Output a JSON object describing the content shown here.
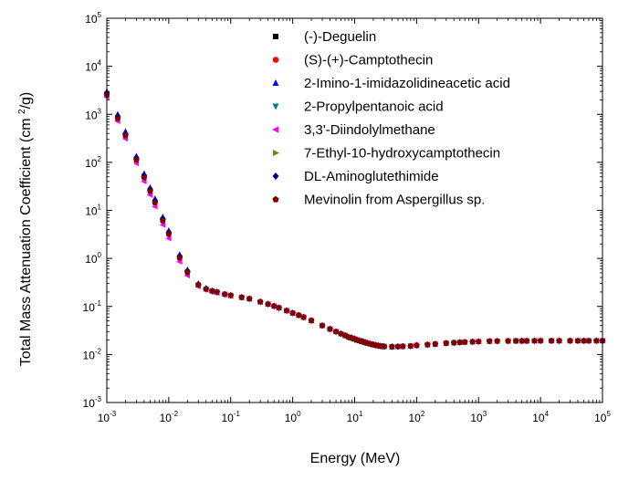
{
  "chart_data": {
    "type": "scatter",
    "x_scale": "log",
    "y_scale": "log",
    "xlabel": "Energy (MeV)",
    "ylabel": {
      "prefix": "Total Mass Attenuation Coefficient (cm ",
      "sup": "2",
      "suffix": "/g)"
    },
    "xlim": [
      0.001,
      100000
    ],
    "ylim": [
      0.001,
      100000
    ],
    "x_ticks": [
      {
        "base": "10",
        "exp": "-3"
      },
      {
        "base": "10",
        "exp": "-2"
      },
      {
        "base": "10",
        "exp": "-1"
      },
      {
        "base": "10",
        "exp": "0"
      },
      {
        "base": "10",
        "exp": "1"
      },
      {
        "base": "10",
        "exp": "2"
      },
      {
        "base": "10",
        "exp": "3"
      },
      {
        "base": "10",
        "exp": "4"
      },
      {
        "base": "10",
        "exp": "5"
      }
    ],
    "y_ticks": [
      {
        "base": "10",
        "exp": "-3"
      },
      {
        "base": "10",
        "exp": "-2"
      },
      {
        "base": "10",
        "exp": "-1"
      },
      {
        "base": "10",
        "exp": "0"
      },
      {
        "base": "10",
        "exp": "1"
      },
      {
        "base": "10",
        "exp": "2"
      },
      {
        "base": "10",
        "exp": "3"
      },
      {
        "base": "10",
        "exp": "4"
      },
      {
        "base": "10",
        "exp": "5"
      }
    ],
    "legend_position": "top-right",
    "x": [
      0.001,
      0.0015,
      0.002,
      0.003,
      0.004,
      0.005,
      0.006,
      0.008,
      0.01,
      0.015,
      0.02,
      0.03,
      0.04,
      0.05,
      0.06,
      0.08,
      0.1,
      0.15,
      0.2,
      0.3,
      0.4,
      0.5,
      0.6,
      0.8,
      1,
      1.25,
      1.5,
      2,
      3,
      4,
      5,
      6,
      7,
      8,
      9,
      10,
      11,
      12,
      13,
      14,
      15,
      16,
      18,
      20,
      22,
      24,
      26,
      28,
      30,
      40,
      50,
      60,
      80,
      100,
      150,
      200,
      300,
      400,
      500,
      600,
      800,
      1000,
      1500,
      2000,
      3000,
      4000,
      5000,
      6000,
      8000,
      10000,
      15000,
      20000,
      30000,
      40000,
      50000,
      60000,
      80000,
      100000
    ],
    "series": [
      {
        "name": "(-)-Deguelin",
        "marker": "square",
        "color": "#000000",
        "values": [
          2600,
          850,
          370,
          115,
          50,
          26,
          15,
          6.3,
          3.3,
          1.05,
          0.52,
          0.28,
          0.23,
          0.21,
          0.2,
          0.18,
          0.17,
          0.155,
          0.145,
          0.125,
          0.112,
          0.102,
          0.094,
          0.082,
          0.073,
          0.066,
          0.06,
          0.051,
          0.04,
          0.034,
          0.03,
          0.027,
          0.025,
          0.023,
          0.022,
          0.021,
          0.02,
          0.0194,
          0.0188,
          0.0182,
          0.0177,
          0.0173,
          0.0166,
          0.016,
          0.0156,
          0.0153,
          0.015,
          0.0148,
          0.0147,
          0.0145,
          0.0146,
          0.0148,
          0.015,
          0.0155,
          0.016,
          0.0165,
          0.0172,
          0.0176,
          0.0179,
          0.0181,
          0.0184,
          0.0186,
          0.0189,
          0.019,
          0.0191,
          0.0192,
          0.0192,
          0.0192,
          0.0193,
          0.0193,
          0.0193,
          0.0193,
          0.0193,
          0.0193,
          0.0193,
          0.0193,
          0.0193,
          0.0193
        ]
      },
      {
        "name": "(S)-(+)-Camptothecin",
        "marker": "circle",
        "color": "#ff0000",
        "values": [
          2700,
          880,
          385,
          120,
          52,
          27,
          15.5,
          6.5,
          3.4,
          1.08,
          0.53,
          0.28,
          0.23,
          0.21,
          0.2,
          0.18,
          0.17,
          0.155,
          0.145,
          0.125,
          0.112,
          0.102,
          0.094,
          0.082,
          0.073,
          0.066,
          0.06,
          0.051,
          0.04,
          0.034,
          0.03,
          0.027,
          0.025,
          0.023,
          0.022,
          0.021,
          0.02,
          0.0194,
          0.0188,
          0.0182,
          0.0177,
          0.0173,
          0.0166,
          0.016,
          0.0156,
          0.0153,
          0.015,
          0.0148,
          0.0147,
          0.0145,
          0.0146,
          0.0148,
          0.015,
          0.0155,
          0.016,
          0.0165,
          0.0172,
          0.0176,
          0.0179,
          0.0181,
          0.0184,
          0.0186,
          0.0189,
          0.019,
          0.0191,
          0.0192,
          0.0192,
          0.0192,
          0.0193,
          0.0193,
          0.0193,
          0.0193,
          0.0193,
          0.0193,
          0.0193,
          0.0193,
          0.0193,
          0.0193
        ]
      },
      {
        "name": "2-Imino-1-imidazolidineacetic acid",
        "marker": "triangle-up",
        "color": "#0000ff",
        "values": [
          3000,
          1000,
          440,
          135,
          58,
          30,
          17.5,
          7.3,
          3.8,
          1.2,
          0.58,
          0.3,
          0.24,
          0.215,
          0.2,
          0.18,
          0.17,
          0.155,
          0.145,
          0.125,
          0.112,
          0.102,
          0.094,
          0.082,
          0.073,
          0.066,
          0.06,
          0.051,
          0.04,
          0.034,
          0.03,
          0.027,
          0.025,
          0.023,
          0.022,
          0.021,
          0.02,
          0.0194,
          0.0188,
          0.0182,
          0.0177,
          0.0173,
          0.0166,
          0.016,
          0.0156,
          0.0153,
          0.015,
          0.0148,
          0.0147,
          0.0145,
          0.0146,
          0.0148,
          0.015,
          0.0155,
          0.016,
          0.0165,
          0.0172,
          0.0176,
          0.0179,
          0.0181,
          0.0184,
          0.0186,
          0.0189,
          0.019,
          0.0191,
          0.0192,
          0.0192,
          0.0192,
          0.0193,
          0.0193,
          0.0193,
          0.0193,
          0.0193,
          0.0193,
          0.0193,
          0.0193,
          0.0193,
          0.0193
        ]
      },
      {
        "name": "2-Propylpentanoic acid",
        "marker": "triangle-down",
        "color": "#008080",
        "values": [
          2400,
          780,
          340,
          105,
          45,
          23,
          13.5,
          5.7,
          3,
          0.95,
          0.48,
          0.27,
          0.225,
          0.205,
          0.195,
          0.178,
          0.168,
          0.155,
          0.145,
          0.125,
          0.112,
          0.102,
          0.094,
          0.082,
          0.073,
          0.066,
          0.06,
          0.051,
          0.04,
          0.034,
          0.03,
          0.027,
          0.025,
          0.023,
          0.022,
          0.021,
          0.02,
          0.0194,
          0.0188,
          0.0182,
          0.0177,
          0.0173,
          0.0166,
          0.016,
          0.0156,
          0.0153,
          0.015,
          0.0148,
          0.0147,
          0.0145,
          0.0146,
          0.0148,
          0.015,
          0.0155,
          0.016,
          0.0165,
          0.0172,
          0.0176,
          0.0179,
          0.0181,
          0.0184,
          0.0186,
          0.0189,
          0.019,
          0.0191,
          0.0192,
          0.0192,
          0.0192,
          0.0193,
          0.0193,
          0.0193,
          0.0193,
          0.0193,
          0.0193,
          0.0193,
          0.0193,
          0.0193,
          0.0193
        ]
      },
      {
        "name": "3,3'-Diindolylmethane",
        "marker": "triangle-left",
        "color": "#ff00ff",
        "values": [
          2300,
          720,
          310,
          95,
          40,
          21,
          12,
          5,
          2.6,
          0.85,
          0.44,
          0.26,
          0.22,
          0.2,
          0.19,
          0.175,
          0.165,
          0.152,
          0.142,
          0.123,
          0.111,
          0.101,
          0.093,
          0.081,
          0.072,
          0.065,
          0.059,
          0.05,
          0.04,
          0.034,
          0.03,
          0.027,
          0.025,
          0.023,
          0.022,
          0.021,
          0.02,
          0.0194,
          0.0188,
          0.0182,
          0.0177,
          0.0173,
          0.0166,
          0.016,
          0.0156,
          0.0153,
          0.015,
          0.0148,
          0.0147,
          0.0145,
          0.0146,
          0.0148,
          0.015,
          0.0155,
          0.016,
          0.0165,
          0.0172,
          0.0176,
          0.0179,
          0.0181,
          0.0184,
          0.0186,
          0.0189,
          0.019,
          0.0191,
          0.0192,
          0.0192,
          0.0192,
          0.0193,
          0.0193,
          0.0193,
          0.0193,
          0.0193,
          0.0193,
          0.0193,
          0.0193,
          0.0193,
          0.0193
        ]
      },
      {
        "name": "7-Ethyl-10-hydroxycamptothecin",
        "marker": "triangle-right",
        "color": "#808000",
        "values": [
          2650,
          860,
          375,
          117,
          51,
          26.5,
          15.2,
          6.4,
          3.35,
          1.06,
          0.525,
          0.28,
          0.23,
          0.21,
          0.2,
          0.18,
          0.17,
          0.155,
          0.145,
          0.125,
          0.112,
          0.102,
          0.094,
          0.082,
          0.073,
          0.066,
          0.06,
          0.051,
          0.04,
          0.034,
          0.03,
          0.027,
          0.025,
          0.023,
          0.022,
          0.021,
          0.02,
          0.0194,
          0.0188,
          0.0182,
          0.0177,
          0.0173,
          0.0166,
          0.016,
          0.0156,
          0.0153,
          0.015,
          0.0148,
          0.0147,
          0.0145,
          0.0146,
          0.0148,
          0.015,
          0.0155,
          0.016,
          0.0165,
          0.0172,
          0.0176,
          0.0179,
          0.0181,
          0.0184,
          0.0186,
          0.0189,
          0.019,
          0.0191,
          0.0192,
          0.0192,
          0.0192,
          0.0193,
          0.0193,
          0.0193,
          0.0193,
          0.0193,
          0.0193,
          0.0193,
          0.0193,
          0.0193,
          0.0193
        ]
      },
      {
        "name": "DL-Aminoglutethimide",
        "marker": "diamond",
        "color": "#00008b",
        "values": [
          2800,
          920,
          400,
          125,
          54,
          28,
          16,
          6.8,
          3.5,
          1.12,
          0.55,
          0.29,
          0.235,
          0.21,
          0.2,
          0.18,
          0.17,
          0.155,
          0.145,
          0.125,
          0.112,
          0.102,
          0.094,
          0.082,
          0.073,
          0.066,
          0.06,
          0.051,
          0.04,
          0.034,
          0.03,
          0.027,
          0.025,
          0.023,
          0.022,
          0.021,
          0.02,
          0.0194,
          0.0188,
          0.0182,
          0.0177,
          0.0173,
          0.0166,
          0.016,
          0.0156,
          0.0153,
          0.015,
          0.0148,
          0.0147,
          0.0145,
          0.0146,
          0.0148,
          0.015,
          0.0155,
          0.016,
          0.0165,
          0.0172,
          0.0176,
          0.0179,
          0.0181,
          0.0184,
          0.0186,
          0.0189,
          0.019,
          0.0191,
          0.0192,
          0.0192,
          0.0192,
          0.0193,
          0.0193,
          0.0193,
          0.0193,
          0.0193,
          0.0193,
          0.0193,
          0.0193,
          0.0193,
          0.0193
        ]
      },
      {
        "name": "Mevinolin from Aspergillus sp.",
        "marker": "pentagon",
        "color": "#800000",
        "values": [
          2550,
          820,
          360,
          112,
          48,
          25,
          14.5,
          6.1,
          3.2,
          1.02,
          0.51,
          0.28,
          0.23,
          0.21,
          0.2,
          0.18,
          0.17,
          0.155,
          0.145,
          0.125,
          0.112,
          0.102,
          0.094,
          0.082,
          0.073,
          0.066,
          0.06,
          0.051,
          0.04,
          0.034,
          0.03,
          0.027,
          0.025,
          0.023,
          0.022,
          0.021,
          0.02,
          0.0194,
          0.0188,
          0.0182,
          0.0177,
          0.0173,
          0.0166,
          0.016,
          0.0156,
          0.0153,
          0.015,
          0.0148,
          0.0147,
          0.0145,
          0.0146,
          0.0148,
          0.015,
          0.0155,
          0.016,
          0.0165,
          0.0172,
          0.0176,
          0.0179,
          0.0181,
          0.0184,
          0.0186,
          0.0189,
          0.019,
          0.0191,
          0.0192,
          0.0192,
          0.0192,
          0.0193,
          0.0193,
          0.0193,
          0.0193,
          0.0193,
          0.0193,
          0.0193,
          0.0193,
          0.0193,
          0.0193
        ]
      }
    ]
  }
}
